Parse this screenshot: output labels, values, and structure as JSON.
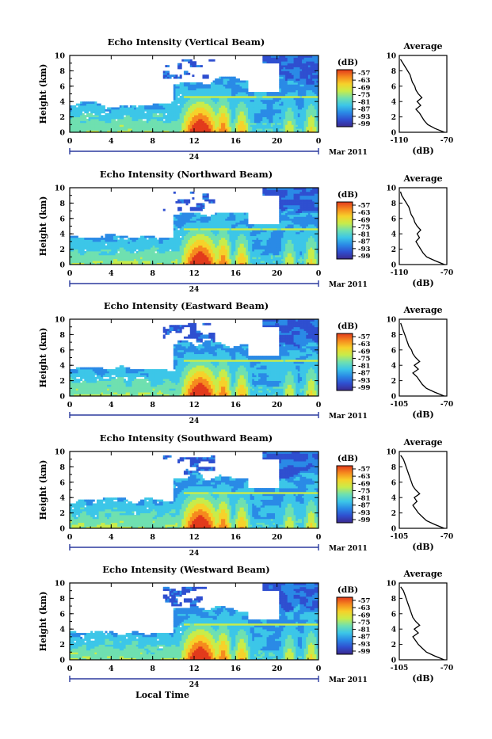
{
  "chart_data": [
    {
      "type": "heatmap",
      "title": "Echo Intensity (Vertical Beam)",
      "ylabel": "Height (km)",
      "ylim": [
        0,
        10
      ],
      "yticks": [
        "0",
        "2",
        "4",
        "6",
        "8",
        "10"
      ],
      "xlim": [
        0,
        24
      ],
      "xticks": [
        "0",
        "4",
        "8",
        "12",
        "16",
        "20",
        "0"
      ],
      "date_marker": "24",
      "date_label": "Mar 2011",
      "colorbar": {
        "unit": "(dB)",
        "ticks": [
          "-57",
          "-63",
          "-69",
          "-75",
          "-81",
          "-87",
          "-93",
          "-99"
        ]
      },
      "profile": {
        "title": "Average",
        "xlabel": "(dB)",
        "xlim": [
          -110,
          -70
        ],
        "xticks": [
          "-110",
          "-70"
        ],
        "ylim": [
          0,
          10
        ],
        "yticks": [
          "0",
          "2",
          "4",
          "6",
          "8",
          "10"
        ],
        "height_km": [
          0,
          0.5,
          1,
          1.5,
          2,
          2.5,
          3,
          3.5,
          4,
          4.5,
          5,
          5.5,
          6,
          6.5,
          7,
          7.5,
          8,
          8.5,
          9,
          9.5
        ],
        "db": [
          -72,
          -80,
          -86,
          -89,
          -91,
          -93,
          -96,
          -92,
          -95,
          -91,
          -94,
          -96,
          -97,
          -99,
          -100,
          -101,
          -103,
          -105,
          -107,
          -109
        ]
      }
    },
    {
      "type": "heatmap",
      "title": "Echo Intensity (Northward Beam)",
      "ylabel": "Height (km)",
      "ylim": [
        0,
        10
      ],
      "yticks": [
        "0",
        "2",
        "4",
        "6",
        "8",
        "10"
      ],
      "xlim": [
        0,
        24
      ],
      "xticks": [
        "0",
        "4",
        "8",
        "12",
        "16",
        "20",
        "0"
      ],
      "date_marker": "24",
      "date_label": "Mar 2011",
      "colorbar": {
        "unit": "(dB)",
        "ticks": [
          "-57",
          "-63",
          "-69",
          "-75",
          "-81",
          "-87",
          "-93",
          "-99"
        ]
      },
      "profile": {
        "title": "Average",
        "xlabel": "(dB)",
        "xlim": [
          -110,
          -70
        ],
        "xticks": [
          "-110",
          "-70"
        ],
        "ylim": [
          0,
          10
        ],
        "yticks": [
          "0",
          "2",
          "4",
          "6",
          "8",
          "10"
        ],
        "height_km": [
          0,
          0.5,
          1,
          1.5,
          2,
          2.5,
          3,
          3.5,
          4,
          4.5,
          5,
          5.5,
          6,
          6.5,
          7,
          7.5,
          8,
          8.5,
          9,
          9.5
        ],
        "db": [
          -72,
          -80,
          -87,
          -90,
          -92,
          -94,
          -96,
          -93,
          -95,
          -92,
          -95,
          -97,
          -98,
          -100,
          -101,
          -102,
          -104,
          -106,
          -108,
          -109
        ]
      }
    },
    {
      "type": "heatmap",
      "title": "Echo Intensity (Eastward Beam)",
      "ylabel": "Height (km)",
      "ylim": [
        0,
        10
      ],
      "yticks": [
        "0",
        "2",
        "4",
        "6",
        "8",
        "10"
      ],
      "xlim": [
        0,
        24
      ],
      "xticks": [
        "0",
        "4",
        "8",
        "12",
        "16",
        "20",
        "0"
      ],
      "date_marker": "24",
      "date_label": "Mar 2011",
      "colorbar": {
        "unit": "(dB)",
        "ticks": [
          "-57",
          "-63",
          "-69",
          "-75",
          "-81",
          "-87",
          "-93",
          "-99"
        ]
      },
      "profile": {
        "title": "Average",
        "xlabel": "(dB)",
        "xlim": [
          -105,
          -70
        ],
        "xticks": [
          "-105",
          "-70"
        ],
        "ylim": [
          0,
          10
        ],
        "yticks": [
          "0",
          "2",
          "4",
          "6",
          "8",
          "10"
        ],
        "height_km": [
          0,
          0.5,
          1,
          1.5,
          2,
          2.5,
          3,
          3.5,
          4,
          4.5,
          5,
          5.5,
          6,
          6.5,
          7,
          7.5,
          8,
          8.5,
          9,
          9.5
        ],
        "db": [
          -72,
          -79,
          -85,
          -88,
          -90,
          -92,
          -95,
          -91,
          -94,
          -90,
          -93,
          -95,
          -96,
          -98,
          -99,
          -100,
          -101,
          -102,
          -103,
          -104
        ]
      }
    },
    {
      "type": "heatmap",
      "title": "Echo Intensity (Southward Beam)",
      "ylabel": "Height (km)",
      "ylim": [
        0,
        10
      ],
      "yticks": [
        "0",
        "2",
        "4",
        "6",
        "8",
        "10"
      ],
      "xlim": [
        0,
        24
      ],
      "xticks": [
        "0",
        "4",
        "8",
        "12",
        "16",
        "20",
        "0"
      ],
      "date_marker": "24",
      "date_label": "Mar 2011",
      "colorbar": {
        "unit": "(dB)",
        "ticks": [
          "-57",
          "-63",
          "-69",
          "-75",
          "-81",
          "-87",
          "-93",
          "-99"
        ]
      },
      "profile": {
        "title": "Average",
        "xlabel": "(dB)",
        "xlim": [
          -105,
          -70
        ],
        "xticks": [
          "-105",
          "-70"
        ],
        "ylim": [
          0,
          10
        ],
        "yticks": [
          "0",
          "2",
          "4",
          "6",
          "8",
          "10"
        ],
        "height_km": [
          0,
          0.5,
          1,
          1.5,
          2,
          2.5,
          3,
          3.5,
          4,
          4.5,
          5,
          5.5,
          6,
          6.5,
          7,
          7.5,
          8,
          8.5,
          9,
          9.5
        ],
        "db": [
          -72,
          -79,
          -85,
          -88,
          -91,
          -93,
          -95,
          -92,
          -94,
          -90,
          -93,
          -95,
          -96,
          -97,
          -98,
          -99,
          -100,
          -101,
          -102,
          -104
        ]
      }
    },
    {
      "type": "heatmap",
      "title": "Echo Intensity (Westward Beam)",
      "ylabel": "Height (km)",
      "ylim": [
        0,
        10
      ],
      "yticks": [
        "0",
        "2",
        "4",
        "6",
        "8",
        "10"
      ],
      "xlim": [
        0,
        24
      ],
      "xticks": [
        "0",
        "4",
        "8",
        "12",
        "16",
        "20",
        "0"
      ],
      "date_marker": "24",
      "date_label": "Mar 2011",
      "xlabel": "Local Time",
      "colorbar": {
        "unit": "(dB)",
        "ticks": [
          "-57",
          "-63",
          "-69",
          "-75",
          "-81",
          "-87",
          "-93",
          "-99"
        ]
      },
      "profile": {
        "title": "Average",
        "xlabel": "(dB)",
        "xlim": [
          -105,
          -70
        ],
        "xticks": [
          "-105",
          "-70"
        ],
        "ylim": [
          0,
          10
        ],
        "yticks": [
          "0",
          "2",
          "4",
          "6",
          "8",
          "10"
        ],
        "height_km": [
          0,
          0.5,
          1,
          1.5,
          2,
          2.5,
          3,
          3.5,
          4,
          4.5,
          5,
          5.5,
          6,
          6.5,
          7,
          7.5,
          8,
          8.5,
          9,
          9.5
        ],
        "db": [
          -72,
          -79,
          -85,
          -88,
          -91,
          -93,
          -95,
          -91,
          -94,
          -90,
          -93,
          -95,
          -96,
          -97,
          -98,
          -99,
          -100,
          -101,
          -102,
          -104
        ]
      }
    }
  ],
  "colors": {
    "scale": [
      "#3b2a8f",
      "#2f4fd0",
      "#2a8ae6",
      "#3cc6e8",
      "#6fe0b0",
      "#c8ec4a",
      "#f6d22a",
      "#f68a1e",
      "#e23a1c"
    ],
    "axis": "#000000",
    "time_marker": "#2b3a9e"
  }
}
